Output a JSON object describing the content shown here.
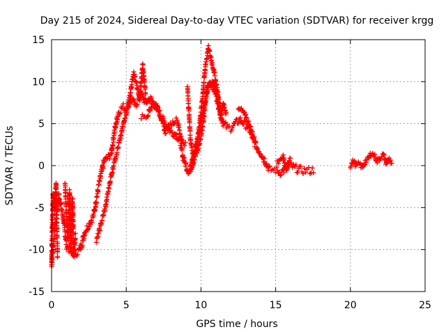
{
  "chart_data": {
    "type": "scatter",
    "title": "Day 215 of 2024, Sidereal Day-to-day VTEC variation (SDTVAR) for receiver krgg",
    "xlabel": "GPS time / hours",
    "ylabel": "SDTVAR / TECUs",
    "xlim": [
      0,
      25
    ],
    "ylim": [
      -15,
      15
    ],
    "x_ticks": [
      "0",
      "5",
      "10",
      "15",
      "20",
      "25"
    ],
    "y_ticks": [
      "-15",
      "-10",
      "-5",
      "0",
      "5",
      "10",
      "15"
    ],
    "grid": true,
    "marker": "+",
    "color": "#ff0000",
    "series": [
      {
        "name": "SDTVAR",
        "trend": {
          "x": [
            0.0,
            0.25,
            0.5,
            0.8,
            1.0,
            1.2,
            1.5,
            1.8,
            2.0,
            2.2,
            2.5,
            2.8,
            3.0,
            3.2,
            3.5,
            3.8,
            4.0,
            4.2,
            4.5,
            4.8,
            5.0,
            5.3,
            5.6,
            6.0,
            6.3,
            6.6,
            7.0,
            7.3,
            7.6,
            8.0,
            8.3,
            8.6,
            8.8,
            9.0,
            9.2,
            9.5,
            9.8,
            10.0,
            10.2,
            10.4,
            10.6,
            10.8,
            11.0,
            11.2,
            11.5,
            11.8,
            12.0,
            12.3,
            12.6,
            12.9,
            13.2,
            13.5,
            13.8,
            14.0,
            14.3,
            14.6,
            15.0,
            15.3,
            15.6,
            16.0,
            16.3,
            16.6,
            17.0,
            17.3,
            17.6
          ],
          "y": [
            -11.8,
            -7.0,
            -3.5,
            -6.5,
            -9.5,
            -10.0,
            -10.5,
            -10.2,
            -9.5,
            -8.0,
            -7.0,
            -6.0,
            -4.0,
            -2.0,
            0.5,
            1.0,
            1.5,
            4.0,
            6.5,
            7.0,
            6.8,
            8.0,
            7.2,
            8.5,
            7.5,
            8.0,
            7.0,
            6.0,
            5.0,
            4.0,
            3.8,
            3.0,
            1.0,
            0.0,
            -0.8,
            0.5,
            2.0,
            3.5,
            6.0,
            9.0,
            10.0,
            9.5,
            8.5,
            7.0,
            5.0,
            4.5,
            4.5,
            5.0,
            5.5,
            5.0,
            4.5,
            3.0,
            2.0,
            1.5,
            0.5,
            -0.5,
            -0.5,
            -0.8,
            -0.5,
            0.0,
            -0.3,
            -0.5,
            -0.6,
            -0.6,
            -0.5
          ]
        },
        "segments": [
          {
            "x": [
              0.0,
              0.05,
              0.1,
              0.2,
              0.3,
              0.4
            ],
            "y": [
              -11.8,
              -7.0,
              -3.2,
              -5.5,
              -2.0,
              -11.0
            ]
          },
          {
            "x": [
              0.9,
              1.0,
              1.1,
              1.2,
              1.3,
              1.4,
              1.5,
              1.6
            ],
            "y": [
              -2.0,
              -6.0,
              -9.0,
              -3.0,
              -10.5,
              -4.0,
              -11.0,
              -8.0
            ]
          },
          {
            "x": [
              3.0,
              3.3,
              3.6,
              3.9,
              4.2,
              4.5,
              4.7,
              4.9,
              5.1,
              5.3,
              5.5,
              5.7,
              5.9,
              6.1,
              6.3
            ],
            "y": [
              -9.0,
              -7.0,
              -5.0,
              -2.0,
              0.5,
              2.5,
              4.0,
              5.8,
              6.8,
              9.0,
              11.0,
              9.5,
              8.0,
              12.0,
              8.5
            ]
          },
          {
            "x": [
              6.0,
              6.4,
              6.8,
              7.2,
              7.6,
              8.0,
              8.4,
              8.7,
              9.0
            ],
            "y": [
              5.8,
              6.0,
              7.5,
              6.5,
              4.0,
              5.0,
              5.5,
              3.0,
              2.5
            ]
          },
          {
            "x": [
              9.1,
              9.3,
              9.5,
              9.7,
              9.9,
              10.1,
              10.3,
              10.5,
              10.7,
              10.9,
              11.1,
              11.3,
              11.5,
              11.7
            ],
            "y": [
              9.3,
              3.0,
              1.0,
              2.0,
              5.0,
              8.0,
              12.0,
              14.0,
              12.5,
              11.0,
              9.0,
              6.0,
              7.5,
              6.0
            ]
          },
          {
            "x": [
              9.3,
              9.6,
              9.9,
              10.2,
              10.5,
              10.8,
              11.1,
              11.4
            ],
            "y": [
              0.0,
              2.0,
              4.0,
              7.0,
              9.5,
              10.0,
              8.5,
              5.0
            ]
          },
          {
            "x": [
              12.5,
              12.8,
              13.1,
              13.4,
              13.7
            ],
            "y": [
              7.0,
              6.5,
              5.5,
              4.0,
              2.5
            ]
          },
          {
            "x": [
              15.1,
              15.3,
              15.5,
              15.7,
              16.0
            ],
            "y": [
              0.3,
              0.5,
              1.0,
              -0.5,
              1.2
            ]
          },
          {
            "x": [
              20.0,
              20.2,
              20.4,
              20.6,
              20.8,
              21.0,
              21.2,
              21.4,
              21.6,
              21.8,
              22.0,
              22.2,
              22.4,
              22.6,
              22.8
            ],
            "y": [
              0.0,
              0.5,
              0.0,
              0.2,
              -0.2,
              0.5,
              0.8,
              1.5,
              1.2,
              0.5,
              1.0,
              1.3,
              0.3,
              0.8,
              0.2
            ]
          }
        ]
      }
    ]
  }
}
